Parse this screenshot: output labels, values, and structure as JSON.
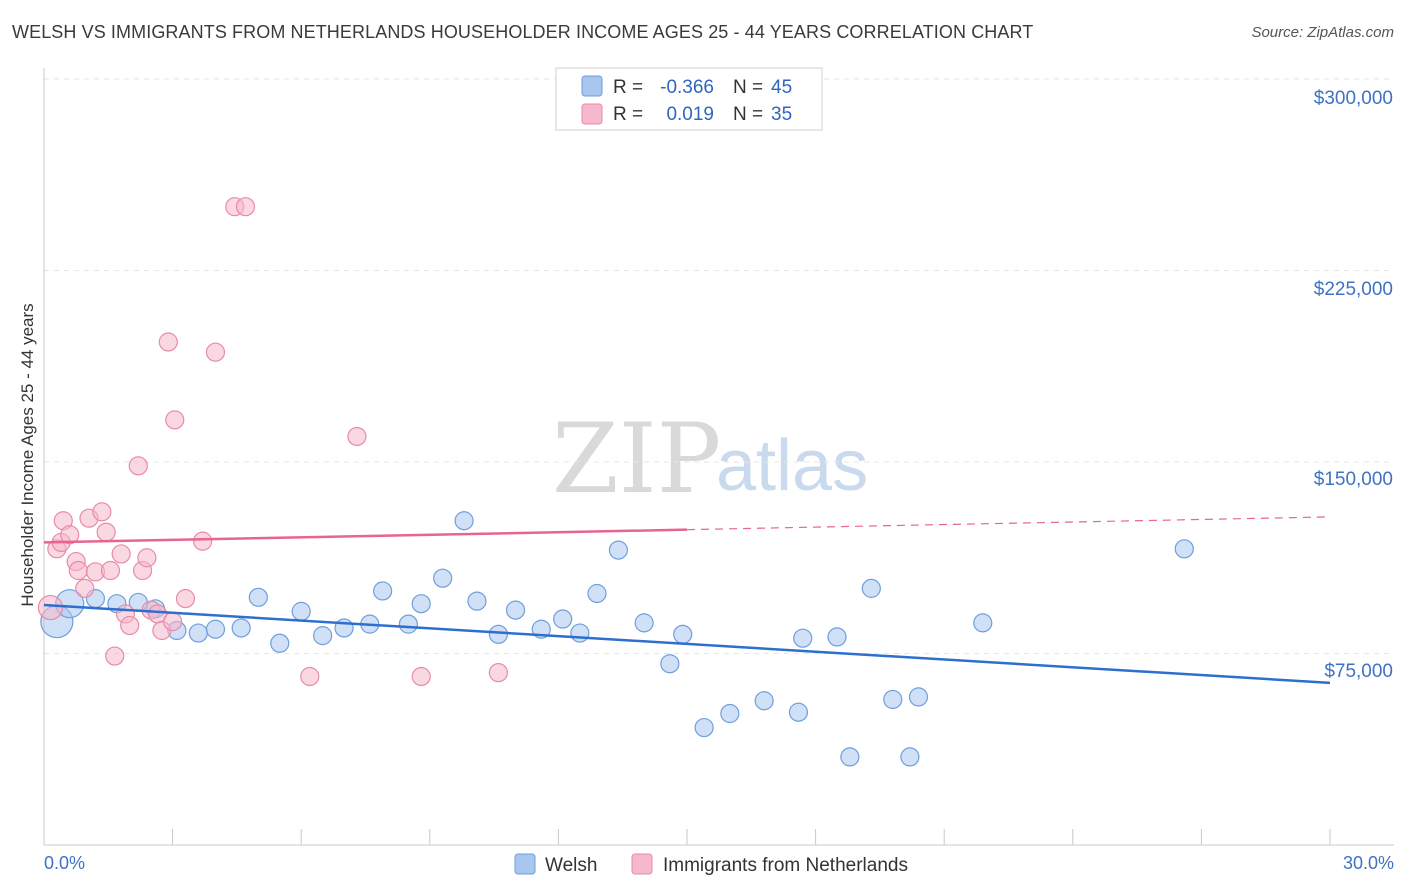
{
  "header": {
    "title": "WELSH VS IMMIGRANTS FROM NETHERLANDS HOUSEHOLDER INCOME AGES 25 - 44 YEARS CORRELATION CHART",
    "source": "Source: ZipAtlas.com"
  },
  "watermark": {
    "zip": "ZIP",
    "atlas": "atlas"
  },
  "legend": {
    "rows": [
      {
        "r_label": "R = ",
        "r_value": "-0.366",
        "n_label": "N = ",
        "n_value": "45",
        "color": "#a9c6ee"
      },
      {
        "r_label": "R = ",
        "r_value": "0.019",
        "n_label": "N = ",
        "n_value": "35",
        "color": "#f6b8cb"
      }
    ]
  },
  "bottom_legend": [
    {
      "label": "Welsh",
      "color": "#a9c6ee"
    },
    {
      "label": "Immigrants from Netherlands",
      "color": "#f6b8cb"
    }
  ],
  "chart_data": {
    "type": "scatter",
    "title": "WELSH VS IMMIGRANTS FROM NETHERLANDS HOUSEHOLDER INCOME AGES 25 - 44 YEARS CORRELATION CHART",
    "xlabel": "",
    "ylabel": "Householder Income Ages 25 - 44 years",
    "xlim": [
      0,
      30
    ],
    "ylim": [
      0,
      310000
    ],
    "x_tick_labels": [
      "0.0%",
      "30.0%"
    ],
    "y_ticks": [
      75000,
      150000,
      225000,
      300000
    ],
    "y_tick_labels": [
      "$75,000",
      "$150,000",
      "$225,000",
      "$300,000"
    ],
    "grid": true,
    "legend_position": "top-center",
    "series": [
      {
        "name": "Welsh",
        "color": "#a9c6ee",
        "stroke": "#6f9fdc",
        "trend": {
          "x": [
            0,
            30
          ],
          "y": [
            94000,
            63500
          ],
          "color": "#2d6fcd",
          "dashed_from": null
        },
        "points": [
          [
            0.3,
            87500,
            16
          ],
          [
            0.6,
            94500,
            14
          ],
          [
            1.2,
            96500,
            9
          ],
          [
            1.7,
            94500,
            9
          ],
          [
            2.2,
            95000,
            9
          ],
          [
            2.6,
            92500,
            9
          ],
          [
            3.1,
            84000,
            9
          ],
          [
            3.6,
            83000,
            9
          ],
          [
            4.0,
            84500,
            9
          ],
          [
            4.6,
            85000,
            9
          ],
          [
            5.0,
            97000,
            9
          ],
          [
            5.5,
            79000,
            9
          ],
          [
            6.0,
            91500,
            9
          ],
          [
            6.5,
            82000,
            9
          ],
          [
            7.0,
            85000,
            9
          ],
          [
            7.6,
            86500,
            9
          ],
          [
            7.9,
            99500,
            9
          ],
          [
            8.5,
            86500,
            9
          ],
          [
            8.8,
            94500,
            9
          ],
          [
            9.3,
            104500,
            9
          ],
          [
            9.8,
            127000,
            9
          ],
          [
            10.1,
            95500,
            9
          ],
          [
            10.6,
            82500,
            9
          ],
          [
            11.0,
            92000,
            9
          ],
          [
            11.6,
            84500,
            9
          ],
          [
            12.1,
            88500,
            9
          ],
          [
            12.5,
            83000,
            9
          ],
          [
            12.9,
            98500,
            9
          ],
          [
            13.4,
            115500,
            9
          ],
          [
            14.0,
            87000,
            9
          ],
          [
            14.6,
            71000,
            9
          ],
          [
            14.9,
            82500,
            9
          ],
          [
            15.4,
            46000,
            9
          ],
          [
            16.0,
            51500,
            9
          ],
          [
            16.8,
            56500,
            9
          ],
          [
            17.7,
            81000,
            9
          ],
          [
            17.6,
            52000,
            9
          ],
          [
            18.5,
            81500,
            9
          ],
          [
            18.8,
            34500,
            9
          ],
          [
            19.3,
            100500,
            9
          ],
          [
            19.8,
            57000,
            9
          ],
          [
            20.2,
            34500,
            9
          ],
          [
            20.4,
            58000,
            9
          ],
          [
            21.9,
            87000,
            9
          ],
          [
            26.6,
            116000,
            9
          ]
        ]
      },
      {
        "name": "Immigrants from Netherlands",
        "color": "#f6b8cb",
        "stroke": "#e98aa8",
        "trend": {
          "x": [
            0,
            30
          ],
          "y": [
            118500,
            128500
          ],
          "color": "#e7658f",
          "dashed_from": 15
        },
        "points": [
          [
            0.15,
            93000,
            12
          ],
          [
            0.3,
            116000,
            9
          ],
          [
            0.4,
            118500,
            9
          ],
          [
            0.45,
            127000,
            9
          ],
          [
            0.6,
            121500,
            9
          ],
          [
            0.75,
            111000,
            9
          ],
          [
            0.8,
            107500,
            9
          ],
          [
            0.95,
            100500,
            9
          ],
          [
            1.05,
            128000,
            9
          ],
          [
            1.2,
            107000,
            9
          ],
          [
            1.35,
            130500,
            9
          ],
          [
            1.45,
            122500,
            9
          ],
          [
            1.55,
            107500,
            9
          ],
          [
            1.65,
            74000,
            9
          ],
          [
            1.8,
            114000,
            9
          ],
          [
            1.9,
            90500,
            9
          ],
          [
            2.0,
            86000,
            9
          ],
          [
            2.2,
            148500,
            9
          ],
          [
            2.3,
            107500,
            9
          ],
          [
            2.4,
            112500,
            9
          ],
          [
            2.5,
            92000,
            9
          ],
          [
            2.65,
            90500,
            9
          ],
          [
            2.75,
            84000,
            9
          ],
          [
            2.9,
            197000,
            9
          ],
          [
            3.0,
            87500,
            9
          ],
          [
            3.05,
            166500,
            9
          ],
          [
            3.3,
            96500,
            9
          ],
          [
            3.7,
            119000,
            9
          ],
          [
            4.0,
            193000,
            9
          ],
          [
            4.45,
            250000,
            9
          ],
          [
            4.7,
            250000,
            9
          ],
          [
            6.2,
            66000,
            9
          ],
          [
            7.3,
            160000,
            9
          ],
          [
            8.8,
            66000,
            9
          ],
          [
            10.6,
            67500,
            9
          ]
        ]
      }
    ]
  }
}
